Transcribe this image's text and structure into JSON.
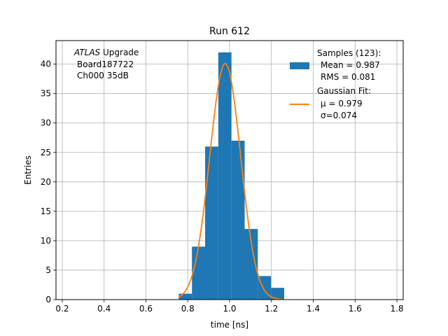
{
  "chart_data": {
    "type": "bar",
    "title": "Run 612",
    "xlabel": "time [ns]",
    "ylabel": "Entries",
    "xlim": [
      0.17,
      1.83
    ],
    "ylim": [
      0,
      44
    ],
    "xticks": [
      "0.2",
      "0.4",
      "0.6",
      "0.8",
      "1.0",
      "1.2",
      "1.4",
      "1.6",
      "1.8"
    ],
    "yticks": [
      "0",
      "5",
      "10",
      "15",
      "20",
      "25",
      "30",
      "35",
      "40"
    ],
    "grid": true,
    "annotation": {
      "italic": "ATLAS",
      "rest": " Upgrade",
      "line2": "Board187722",
      "line3": "Ch000 35dB"
    },
    "legend": {
      "placement": "top-right",
      "samples": {
        "label": "Samples (123):",
        "mean": "Mean = 0.987",
        "rms": "RMS = 0.081"
      },
      "fit": {
        "label": "Gaussian Fit:",
        "mu": "μ = 0.979",
        "sigma": "σ=0.074"
      }
    },
    "histogram": {
      "bin_edges": [
        0.757,
        0.82,
        0.883,
        0.946,
        1.009,
        1.072,
        1.135,
        1.198,
        1.261
      ],
      "counts": [
        1,
        9,
        26,
        42,
        27,
        12,
        4,
        2
      ]
    },
    "fit_curve": {
      "mu": 0.979,
      "sigma": 0.074,
      "amplitude": 40.1,
      "x_range": [
        0.757,
        1.261
      ]
    },
    "colors": {
      "bars": "#1f77b4",
      "fit": "#ff7f0e",
      "grid": "#b0b0b0"
    }
  }
}
